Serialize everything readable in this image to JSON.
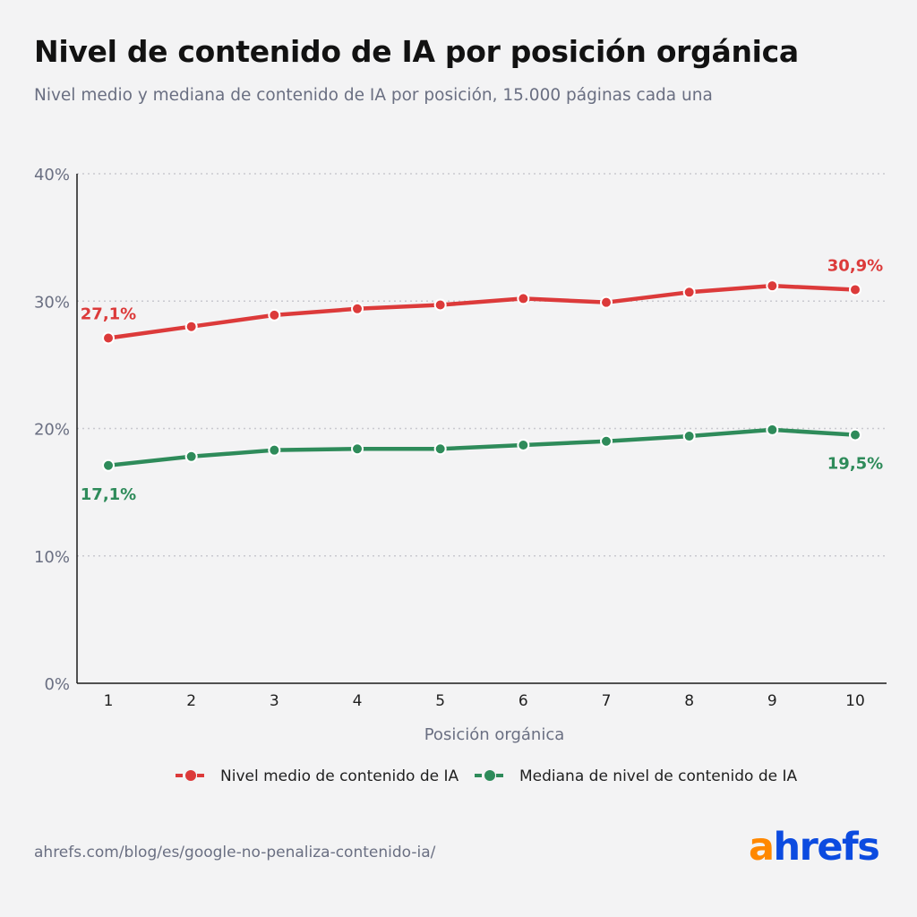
{
  "header": {
    "title": "Nivel de contenido de IA por posición orgánica",
    "subtitle": "Nivel medio y mediana de contenido de IA por posición, 15.000 páginas cada una"
  },
  "colors": {
    "mean": "#dc3a3a",
    "median": "#2e8b5a",
    "axis": "#1a1a1a",
    "grid": "#c9c9cf",
    "tick_text": "#6a6f82",
    "background": "#f3f3f4"
  },
  "chart_data": {
    "type": "line",
    "x": [
      1,
      2,
      3,
      4,
      5,
      6,
      7,
      8,
      9,
      10
    ],
    "xlabel": "Posición orgánica",
    "ylabel": "",
    "ylim": [
      0,
      40
    ],
    "yticks": [
      0,
      10,
      20,
      30,
      40
    ],
    "ytick_labels": [
      "0%",
      "10%",
      "20%",
      "30%",
      "40%"
    ],
    "xtick_labels": [
      "1",
      "2",
      "3",
      "4",
      "5",
      "6",
      "7",
      "8",
      "9",
      "10"
    ],
    "grid": true,
    "legend_position": "bottom",
    "series": [
      {
        "key": "mean",
        "name": "Nivel medio de contenido de IA",
        "values": [
          27.1,
          28.0,
          28.9,
          29.4,
          29.7,
          30.2,
          29.9,
          30.7,
          31.2,
          30.9
        ],
        "annotations": [
          {
            "index": 0,
            "text": "27,1%"
          },
          {
            "index": 9,
            "text": "30,9%"
          }
        ]
      },
      {
        "key": "median",
        "name": "Mediana de nivel de contenido de IA",
        "values": [
          17.1,
          17.8,
          18.3,
          18.4,
          18.4,
          18.7,
          19.0,
          19.4,
          19.9,
          19.5
        ],
        "annotations": [
          {
            "index": 0,
            "text": "17,1%"
          },
          {
            "index": 9,
            "text": "19,5%"
          }
        ]
      }
    ]
  },
  "footer": {
    "source": "ahrefs.com/blog/es/google-no-penaliza-contenido-ia/",
    "logo_a": "a",
    "logo_rest": "hrefs"
  }
}
